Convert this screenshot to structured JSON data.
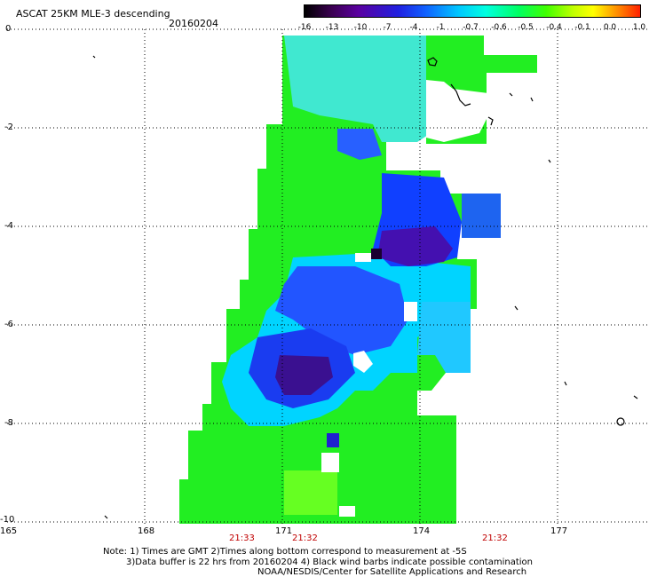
{
  "title": "ASCAT 25KM MLE-3 descending",
  "date": "20160204",
  "colorbar": {
    "ticks": [
      "-16",
      "-13",
      "-10",
      "-7",
      "-4",
      "-1",
      "-0.7",
      "-0.6",
      "-0.5",
      "-0.4",
      "-0.1",
      "0.0",
      "1.0"
    ]
  },
  "axes": {
    "lat_ticks": [
      "0",
      "-2",
      "-4",
      "-6",
      "-8",
      "-10"
    ],
    "lon_ticks": [
      "165",
      "168",
      "171",
      "174",
      "177"
    ]
  },
  "times": [
    "21:33",
    "21:32",
    "21:32"
  ],
  "notes": {
    "line1": "Note: 1) Times are GMT 2)Times along bottom correspond to measurement at -5S",
    "line2": "3)Data buffer is 22 hrs from 20160204 4) Black wind barbs indicate possible contamination",
    "line3": "NOAA/NESDIS/Center for Satellite Applications and Research"
  }
}
